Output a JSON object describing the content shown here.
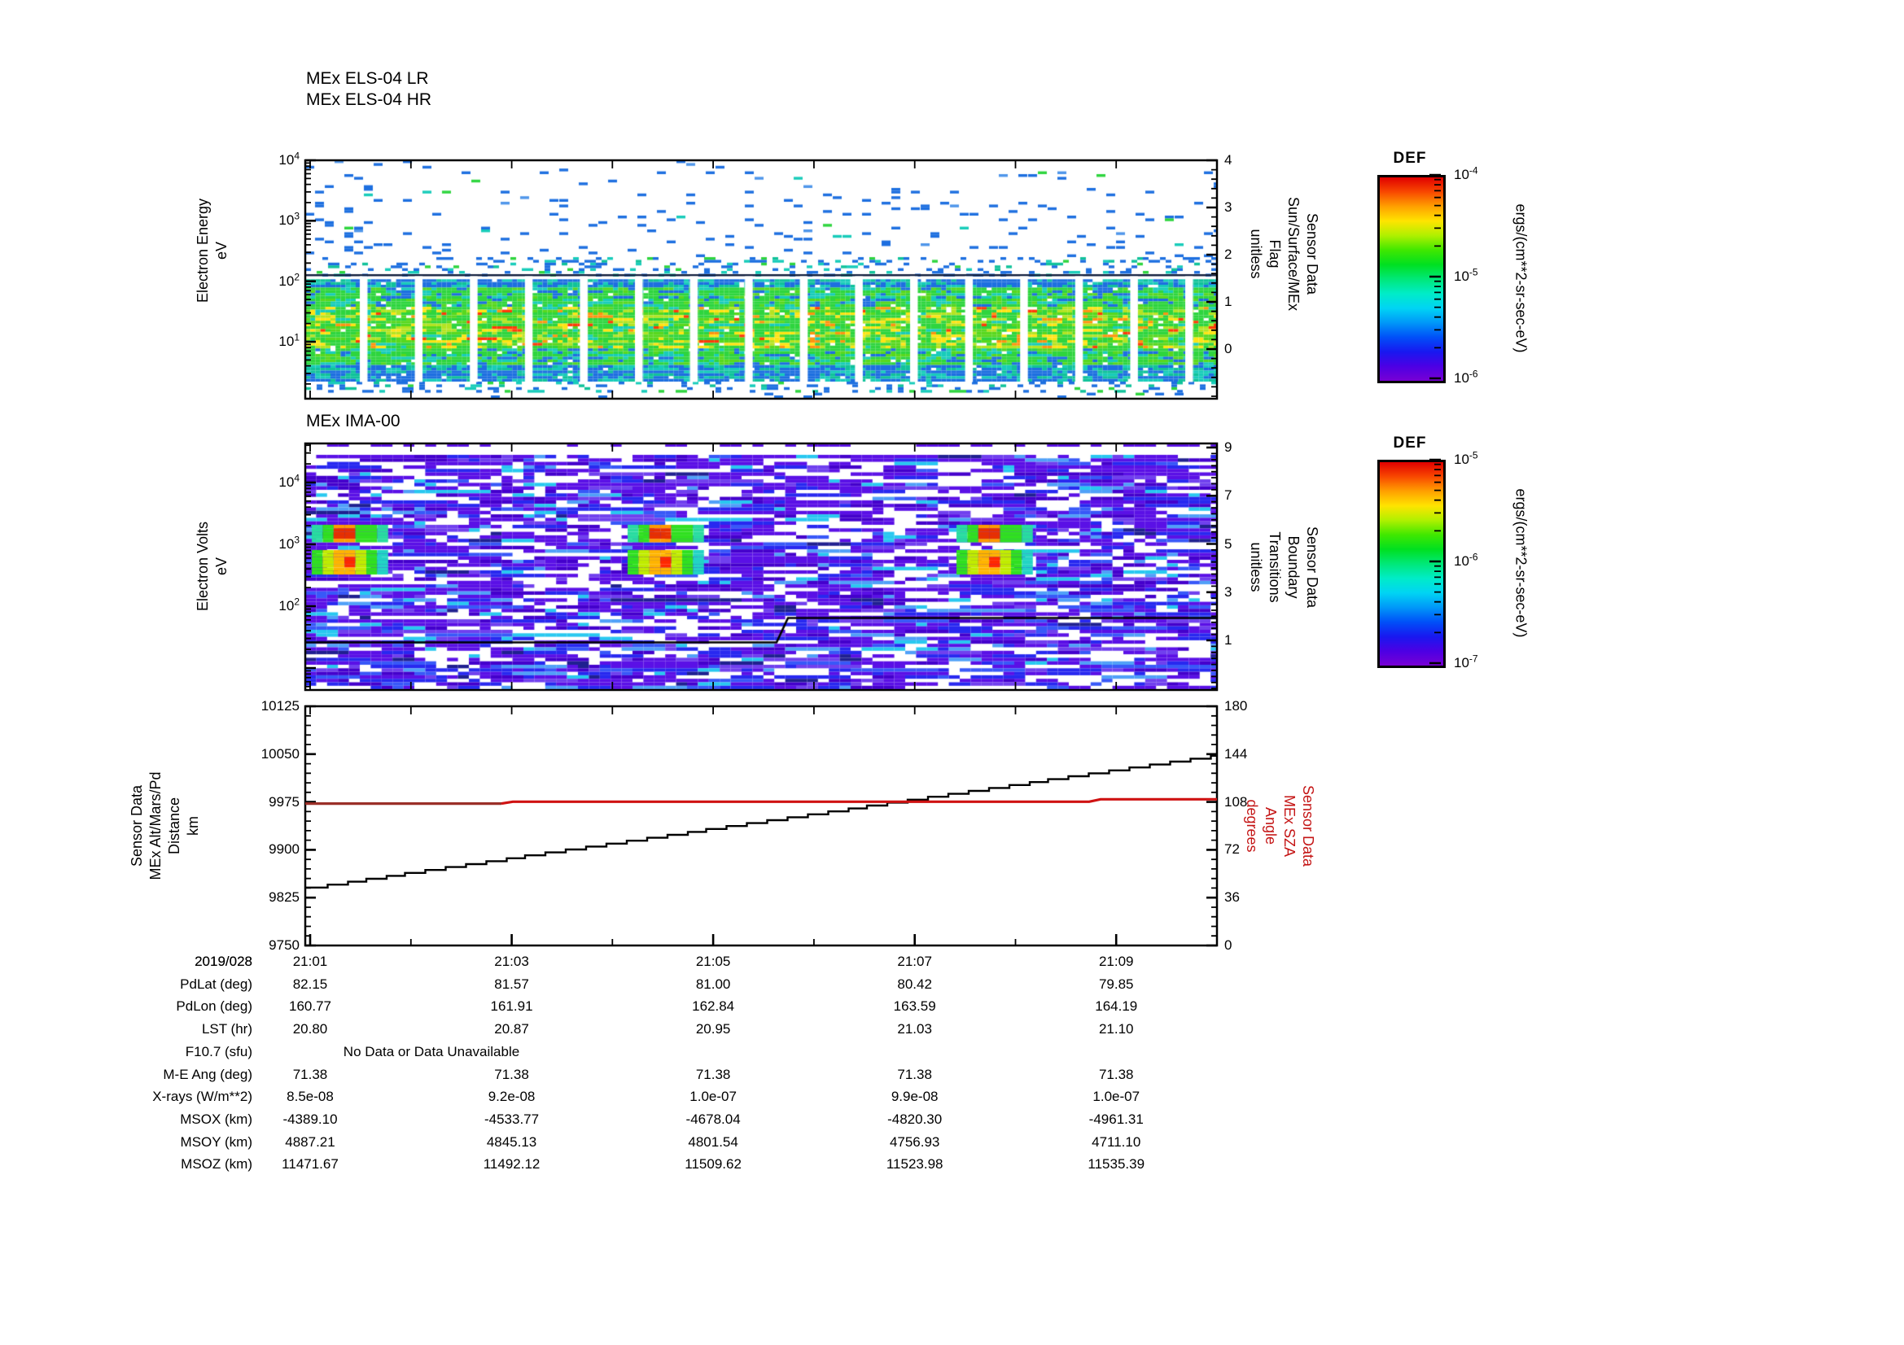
{
  "header": {
    "titles": [
      "MEx ELS-04 LR",
      "MEx ELS-04 HR"
    ],
    "ima_title": "MEx IMA-00"
  },
  "els": {
    "ylabel": [
      "Electron Energy",
      "eV"
    ],
    "ytick_exps": [
      "4",
      "3",
      "2",
      "1"
    ],
    "right_label": [
      "Sensor Data",
      "Sun/Surface/MEx",
      "Flag",
      "unitless"
    ],
    "right_ticks": [
      "4",
      "3",
      "2",
      "1",
      "0"
    ]
  },
  "ima": {
    "ylabel": [
      "Electron Volts",
      "eV"
    ],
    "ytick_exps": [
      "4",
      "3",
      "2"
    ],
    "right_label": [
      "Sensor Data",
      "Boundary",
      "Transitions",
      "unitless"
    ],
    "right_ticks": [
      "9",
      "7",
      "5",
      "3",
      "1"
    ]
  },
  "orbit": {
    "left_label": [
      "Sensor Data",
      "MEx Alt/Mars/Pd",
      "Distance",
      "km"
    ],
    "left_ticks": [
      "10125",
      "10050",
      "9975",
      "9900",
      "9825",
      "9750"
    ],
    "right_label": [
      "Sensor Data",
      "MEx SZA",
      "Angle",
      "degrees"
    ],
    "right_ticks": [
      "180",
      "144",
      "108",
      "72",
      "36",
      "0"
    ],
    "date_label": "2019/028"
  },
  "colorbars": [
    {
      "title": "DEF",
      "unit": "ergs/(cm**2-sr-sec-eV)",
      "tick_exps": [
        "-4",
        "-5",
        "-6"
      ]
    },
    {
      "title": "DEF",
      "unit": "ergs/(cm**2-sr-sec-eV)",
      "tick_exps": [
        "-5",
        "-6",
        "-7"
      ]
    }
  ],
  "table": {
    "rows": [
      {
        "label": "2019/028",
        "values": [
          "21:01",
          "21:03",
          "21:05",
          "21:07",
          "21:09"
        ]
      },
      {
        "label": "PdLat (deg)",
        "values": [
          "82.15",
          "81.57",
          "81.00",
          "80.42",
          "79.85"
        ]
      },
      {
        "label": "PdLon (deg)",
        "values": [
          "160.77",
          "161.91",
          "162.84",
          "163.59",
          "164.19"
        ]
      },
      {
        "label": "LST (hr)",
        "values": [
          "20.80",
          "20.87",
          "20.95",
          "21.03",
          "21.10"
        ]
      },
      {
        "label": "F10.7 (sfu)",
        "values": [],
        "note": "No Data or Data Unavailable"
      },
      {
        "label": "M-E Ang (deg)",
        "values": [
          "71.38",
          "71.38",
          "71.38",
          "71.38",
          "71.38"
        ]
      },
      {
        "label": "X-rays (W/m**2)",
        "values": [
          "8.5e-08",
          "9.2e-08",
          "1.0e-07",
          "9.9e-08",
          "1.0e-07"
        ]
      },
      {
        "label": "MSOX (km)",
        "values": [
          "-4389.10",
          "-4533.77",
          "-4678.04",
          "-4820.30",
          "-4961.31"
        ]
      },
      {
        "label": "MSOY (km)",
        "values": [
          "4887.21",
          "4845.13",
          "4801.54",
          "4756.93",
          "4711.10"
        ]
      },
      {
        "label": "MSOZ (km)",
        "values": [
          "11471.67",
          "11492.12",
          "11509.62",
          "11523.98",
          "11535.39"
        ]
      }
    ]
  },
  "colors": {
    "sza_line": "#cf1212",
    "sza_line_dark": "#9a2f28",
    "alt_line": "#000000",
    "frame": "#000000",
    "colorbar_gradient": [
      "#e00000",
      "#f84800",
      "#ffa000",
      "#ffe400",
      "#b0f000",
      "#40e800",
      "#00e020",
      "#00e878",
      "#00ecc8",
      "#00d4f4",
      "#0098f8",
      "#0050f8",
      "#1818f0",
      "#4c00e4",
      "#7800d4"
    ],
    "ima_palette": [
      [
        "#ffffff",
        0.27
      ],
      [
        "#5a10e6",
        0.3
      ],
      [
        "#4400cc",
        0.1
      ],
      [
        "#2828f0",
        0.12
      ],
      [
        "#3858f8",
        0.05
      ],
      [
        "#28c8f0",
        0.05
      ],
      [
        "#50a0f8",
        0.04
      ],
      [
        "#7040ee",
        0.05
      ],
      [
        "#202090",
        0.02
      ]
    ],
    "els_colors": {
      "blue": "#1d6fe0",
      "lightblue": "#4f96ea",
      "cyan": "#18ccba",
      "teal": "#10c29a",
      "green": "#2ed53e",
      "green2": "#58d81e",
      "yellow": "#ffe414",
      "yellowgreen": "#b4e422",
      "orange": "#ff9410",
      "red": "#ff3a08"
    }
  },
  "chart_data": [
    {
      "type": "heatmap",
      "title": "MEx ELS-04 LR / MEx ELS-04 HR",
      "xlabel": "time (2019/028)",
      "x_range": [
        "21:01",
        "21:10"
      ],
      "ylabel": "Electron Energy (eV)",
      "y_scale": "log",
      "y_range": [
        1,
        10000
      ],
      "z_label": "DEF ergs/(cm**2-sr-sec-eV)",
      "z_range": [
        1e-06,
        0.0001
      ],
      "right_axis": {
        "label": "Sensor Data Sun/Surface/MEx Flag (unitless)",
        "ticks": [
          0,
          1,
          2,
          3,
          4
        ]
      },
      "description": "Dense electron flux band between ~5 and ~300 eV with green-yellow core near 1e-5 and occasional orange/red flecks near 1e-4; blue ~1e-6 edges; sparse blue specks up to 1e4 eV; ~16 vertical white data gaps spaced ~40 s apart across the band",
      "data_gap_count": 16
    },
    {
      "type": "heatmap",
      "title": "MEx IMA-00",
      "xlabel": "time (2019/028)",
      "x_range": [
        "21:01",
        "21:10"
      ],
      "ylabel": "Electron Volts (eV)",
      "y_scale": "log",
      "y_range": [
        4,
        40000
      ],
      "z_label": "DEF ergs/(cm**2-sr-sec-eV)",
      "z_range": [
        1e-07,
        1e-05
      ],
      "right_axis": {
        "label": "Sensor Data Boundary Transitions (unitless)",
        "ticks": [
          1,
          3,
          5,
          7,
          9
        ]
      },
      "bright_blobs": [
        {
          "time": "21:01",
          "energy_eV": [
            700,
            2000
          ]
        },
        {
          "time": "21:04.3",
          "energy_eV": [
            700,
            2000
          ]
        },
        {
          "time": "21:07.3",
          "energy_eV": [
            700,
            2000
          ]
        }
      ],
      "boundary_line": {
        "level_before": 1,
        "level_after": 2,
        "step_time": "21:05.7"
      },
      "description": "Noisy blue/purple mosaic (1e-7..1e-6) with white dropouts and cyan streaks; three bright green blobs with orange/red cores near 700-2000 eV; black boundary-transition step line at level 1 rising to level 2"
    },
    {
      "type": "line",
      "x": [
        "21:01",
        "21:02",
        "21:03",
        "21:04",
        "21:05",
        "21:06",
        "21:07",
        "21:08",
        "21:09",
        "21:10"
      ],
      "series": [
        {
          "name": "MEx Alt/Mars/Pd Distance (km)",
          "axis": "left",
          "color": "#000000",
          "style": "staircase",
          "values": [
            9839,
            9863,
            9886,
            9909,
            9932,
            9955,
            9978,
            10001,
            10024,
            10047
          ]
        },
        {
          "name": "MEx SZA Angle (degrees)",
          "axis": "right",
          "color": "#cf1212",
          "style": "step",
          "values": [
            106.8,
            106.8,
            108.2,
            108.2,
            108.2,
            108.2,
            108.2,
            108.2,
            110.0,
            110.0
          ]
        }
      ],
      "ylim_left": [
        9750,
        10125
      ],
      "ylim_right": [
        0,
        180
      ],
      "x_ticks": [
        "21:01",
        "21:03",
        "21:05",
        "21:07",
        "21:09"
      ],
      "grid": false,
      "legend": "none"
    }
  ]
}
